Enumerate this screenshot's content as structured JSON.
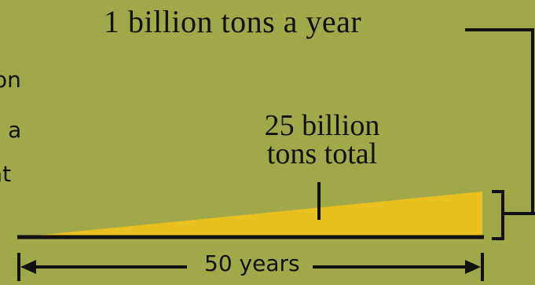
{
  "rate_label": "1 billion tons a year",
  "total_label": {
    "line1": "25 billion",
    "line2": "tons total"
  },
  "duration_label": "50 years",
  "cut_off_text": [
    "on",
    "e a",
    "at"
  ],
  "colors": {
    "background": "#a0a84a",
    "wedge": "#e8c020",
    "lines": "#111111"
  }
}
